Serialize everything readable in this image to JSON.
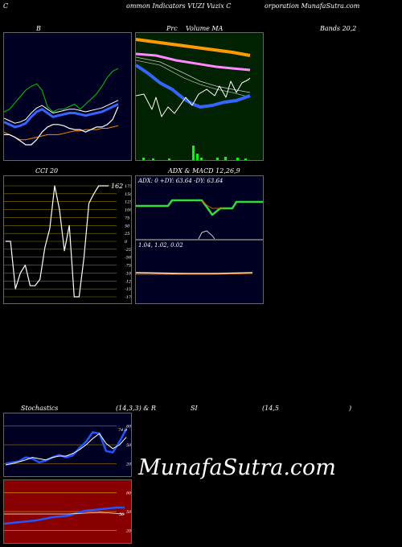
{
  "header": {
    "left": "C",
    "mid": "ommon  Indicators VUZI Vuzix  C",
    "right": "orporation  MunafaSutra.com"
  },
  "titles": {
    "bollinger_left": "B",
    "bollinger_mid": "Prc",
    "bollinger_right": "Bands 20,2",
    "ma_label": "Volume  MA",
    "cci": "CCI 20",
    "adx_macd": "ADX  & MACD 12,26,9",
    "stoch_left": "Stochastics",
    "stoch_mid": "(14,3,3) & R",
    "rsi_mid": "SI",
    "rsi_right": "(14,5",
    "rsi_end": ")"
  },
  "adx_values": "ADX: 0  +DY: 63.64  -DY: 63.64",
  "macd_values": "1.04,  1.02,  0.02",
  "cci_value": "162",
  "cci_ticks": [
    "175",
    "150",
    "125",
    "100",
    "75",
    "50",
    "25",
    "0",
    "-25",
    "-50",
    "-75",
    "-100",
    "-125",
    "-150",
    "-175"
  ],
  "stoch_ticks": [
    "80",
    "50",
    "20"
  ],
  "stoch_value": "74.9",
  "rsi_ticks": [
    "80",
    "50",
    "20"
  ],
  "rsi_value": "56",
  "watermark": "MunafaSutra.com",
  "colors": {
    "panel_navy": "#000022",
    "panel_green": "#002200",
    "panel_red": "#880000",
    "upper_band": "#00cc00",
    "lower_band": "#ff8800",
    "mid_band": "#ffffff",
    "ma_blue": "#3366ff",
    "ma_pink": "#ff88ff",
    "ma_orange": "#ff9900",
    "adx_green": "#33dd33",
    "stoch_blue": "#2255ff"
  },
  "chart_data": [
    {
      "type": "line",
      "name": "bollinger",
      "series": [
        {
          "values": [
            0.62,
            0.6,
            0.55,
            0.5,
            0.45,
            0.42,
            0.4,
            0.45,
            0.58,
            0.62,
            0.6,
            0.6,
            0.58,
            0.56,
            0.6,
            0.56,
            0.52,
            0.48,
            0.42,
            0.35,
            0.3,
            0.28
          ]
        },
        {
          "values": [
            0.7,
            0.72,
            0.74,
            0.73,
            0.71,
            0.66,
            0.62,
            0.6,
            0.63,
            0.66,
            0.65,
            0.64,
            0.63,
            0.63,
            0.64,
            0.65,
            0.64,
            0.63,
            0.62,
            0.6,
            0.58,
            0.56
          ]
        },
        {
          "values": [
            0.78,
            0.8,
            0.82,
            0.84,
            0.84,
            0.83,
            0.82,
            0.81,
            0.8,
            0.8,
            0.8,
            0.79,
            0.78,
            0.77,
            0.77,
            0.76,
            0.76,
            0.76,
            0.75,
            0.75,
            0.74,
            0.73
          ]
        },
        {
          "values": [
            0.8,
            0.8,
            0.82,
            0.85,
            0.88,
            0.88,
            0.84,
            0.78,
            0.74,
            0.72,
            0.72,
            0.73,
            0.75,
            0.76,
            0.76,
            0.78,
            0.76,
            0.74,
            0.74,
            0.72,
            0.68,
            0.58
          ]
        }
      ]
    },
    {
      "type": "line",
      "name": "cci",
      "values": [
        0,
        0,
        -150,
        -100,
        -75,
        -140,
        -140,
        -120,
        -20,
        40,
        210,
        100,
        -30,
        50,
        -200,
        -250,
        -50,
        120,
        150,
        200,
        300,
        380
      ]
    },
    {
      "type": "line",
      "name": "stochastic_rsi",
      "series": [
        {
          "values": [
            20,
            22,
            24,
            30,
            28,
            22,
            25,
            30,
            34,
            30,
            33,
            45,
            55,
            70,
            68,
            40,
            38,
            55,
            75
          ]
        },
        {
          "values": [
            18,
            20,
            23,
            26,
            30,
            28,
            26,
            30,
            32,
            32,
            36,
            42,
            50,
            60,
            68,
            52,
            44,
            50,
            62
          ]
        }
      ]
    }
  ]
}
